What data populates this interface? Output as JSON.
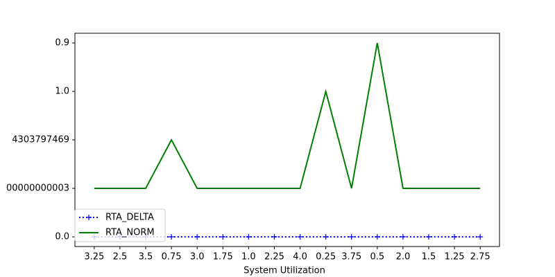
{
  "chart_data": {
    "type": "line",
    "xlabel": "System Utilization",
    "categories": [
      "3.25",
      "2.5",
      "3.5",
      "0.75",
      "3.0",
      "1.75",
      "1.0",
      "2.25",
      "4.0",
      "0.25",
      "3.75",
      "0.5",
      "2.0",
      "1.5",
      "1.25",
      "2.75"
    ],
    "series": [
      {
        "name": "RTA_DELTA",
        "color": "#0000ff",
        "values": [
          0,
          0,
          0,
          0,
          0,
          0,
          0,
          0,
          0,
          0,
          0,
          0,
          0,
          0,
          0,
          0
        ]
      },
      {
        "name": "RTA_NORM",
        "color": "#008000",
        "values": [
          1,
          1,
          1,
          2,
          1,
          1,
          1,
          1,
          1,
          3,
          1,
          4,
          1,
          1,
          1,
          1
        ]
      }
    ],
    "ylim": [
      -0.2,
      4.2
    ],
    "yticks": [
      {
        "value": 0,
        "label": "0.0"
      },
      {
        "value": 1,
        "label": "00000000003"
      },
      {
        "value": 2,
        "label": "4303797469"
      },
      {
        "value": 3,
        "label": "1.0"
      },
      {
        "value": 4,
        "label": "0.9"
      }
    ],
    "legend": "lower left"
  }
}
